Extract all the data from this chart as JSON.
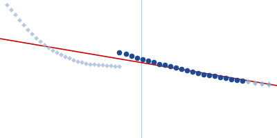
{
  "background_color": "#ffffff",
  "fig_width": 4.0,
  "fig_height": 2.0,
  "dpi": 100,
  "xlim": [
    0.0,
    1.0
  ],
  "ylim": [
    0.0,
    1.0
  ],
  "guinier_line": {
    "x": [
      0.0,
      1.0
    ],
    "y": [
      0.72,
      0.38
    ],
    "color": "#cc0000",
    "lw": 1.2
  },
  "vertical_line_x": 0.51,
  "vertical_line_color": "#b0cce0",
  "vertical_line_lw": 0.8,
  "excluded_points": {
    "x": [
      0.025,
      0.04,
      0.055,
      0.07,
      0.085,
      0.1,
      0.115,
      0.13,
      0.145,
      0.16,
      0.175,
      0.19,
      0.205,
      0.22,
      0.235,
      0.25,
      0.265,
      0.28,
      0.295,
      0.31,
      0.325,
      0.34,
      0.355,
      0.37,
      0.385,
      0.4,
      0.415,
      0.43
    ],
    "y": [
      0.965,
      0.93,
      0.895,
      0.855,
      0.82,
      0.785,
      0.755,
      0.725,
      0.7,
      0.675,
      0.655,
      0.635,
      0.62,
      0.605,
      0.59,
      0.578,
      0.566,
      0.556,
      0.548,
      0.542,
      0.537,
      0.533,
      0.53,
      0.528,
      0.525,
      0.523,
      0.521,
      0.519
    ],
    "color": "#a0b8d8",
    "marker": "D",
    "size": 3.5,
    "alpha": 0.75
  },
  "fit_points": {
    "x": [
      0.43,
      0.455,
      0.475,
      0.495,
      0.515,
      0.535,
      0.555,
      0.575,
      0.595,
      0.615,
      0.635,
      0.655,
      0.675,
      0.695,
      0.715,
      0.735,
      0.755,
      0.775,
      0.795,
      0.815,
      0.835,
      0.855,
      0.875
    ],
    "y": [
      0.62,
      0.608,
      0.595,
      0.58,
      0.57,
      0.558,
      0.548,
      0.535,
      0.528,
      0.518,
      0.508,
      0.498,
      0.488,
      0.478,
      0.47,
      0.462,
      0.455,
      0.448,
      0.44,
      0.433,
      0.426,
      0.42,
      0.414
    ],
    "yerr": [
      0.012,
      0.01,
      0.01,
      0.01,
      0.01,
      0.01,
      0.01,
      0.01,
      0.01,
      0.01,
      0.01,
      0.01,
      0.01,
      0.01,
      0.01,
      0.01,
      0.01,
      0.01,
      0.01,
      0.01,
      0.01,
      0.01,
      0.01
    ],
    "color": "#1a4a9a",
    "ecolor": "#7090b8",
    "marker": "o",
    "size": 4.5
  },
  "tail_points": {
    "x": [
      0.895,
      0.92,
      0.945,
      0.97
    ],
    "y": [
      0.408,
      0.4,
      0.395,
      0.388
    ],
    "yerr": [
      0.018,
      0.02,
      0.022,
      0.025
    ],
    "color": "#8aaccc",
    "ecolor": "#8aaccc",
    "marker": "o",
    "size": 3.5,
    "alpha": 0.65
  }
}
